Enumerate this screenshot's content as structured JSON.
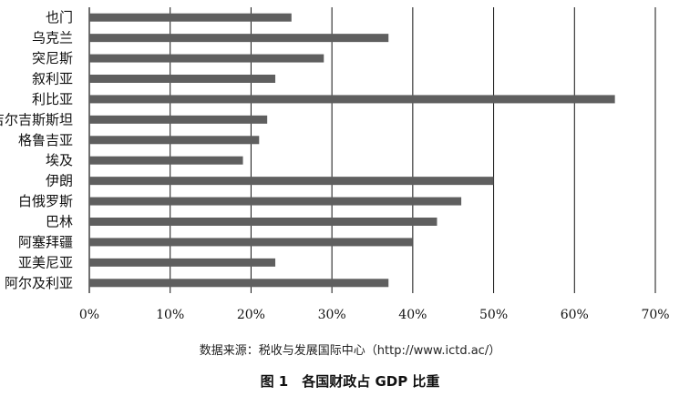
{
  "chart_data": {
    "type": "bar",
    "orientation": "horizontal",
    "categories": [
      "也门",
      "乌克兰",
      "突尼斯",
      "叙利亚",
      "利比亚",
      "吉尔吉斯斯坦",
      "格鲁吉亚",
      "埃及",
      "伊朗",
      "白俄罗斯",
      "巴林",
      "阿塞拜疆",
      "亚美尼亚",
      "阿尔及利亚"
    ],
    "values": [
      25,
      37,
      29,
      23,
      65,
      22,
      21,
      19,
      50,
      46,
      43,
      40,
      23,
      37
    ],
    "xlim": [
      0,
      70
    ],
    "xticks": [
      "0%",
      "10%",
      "20%",
      "30%",
      "40%",
      "50%",
      "60%",
      "70%"
    ],
    "grid": "vertical",
    "bar_color": "#5f5f5f"
  },
  "source_note": "数据来源：税收与发展国际中心（http://www.ictd.ac/）",
  "figure_title": "图 1　各国财政占 GDP 比重"
}
